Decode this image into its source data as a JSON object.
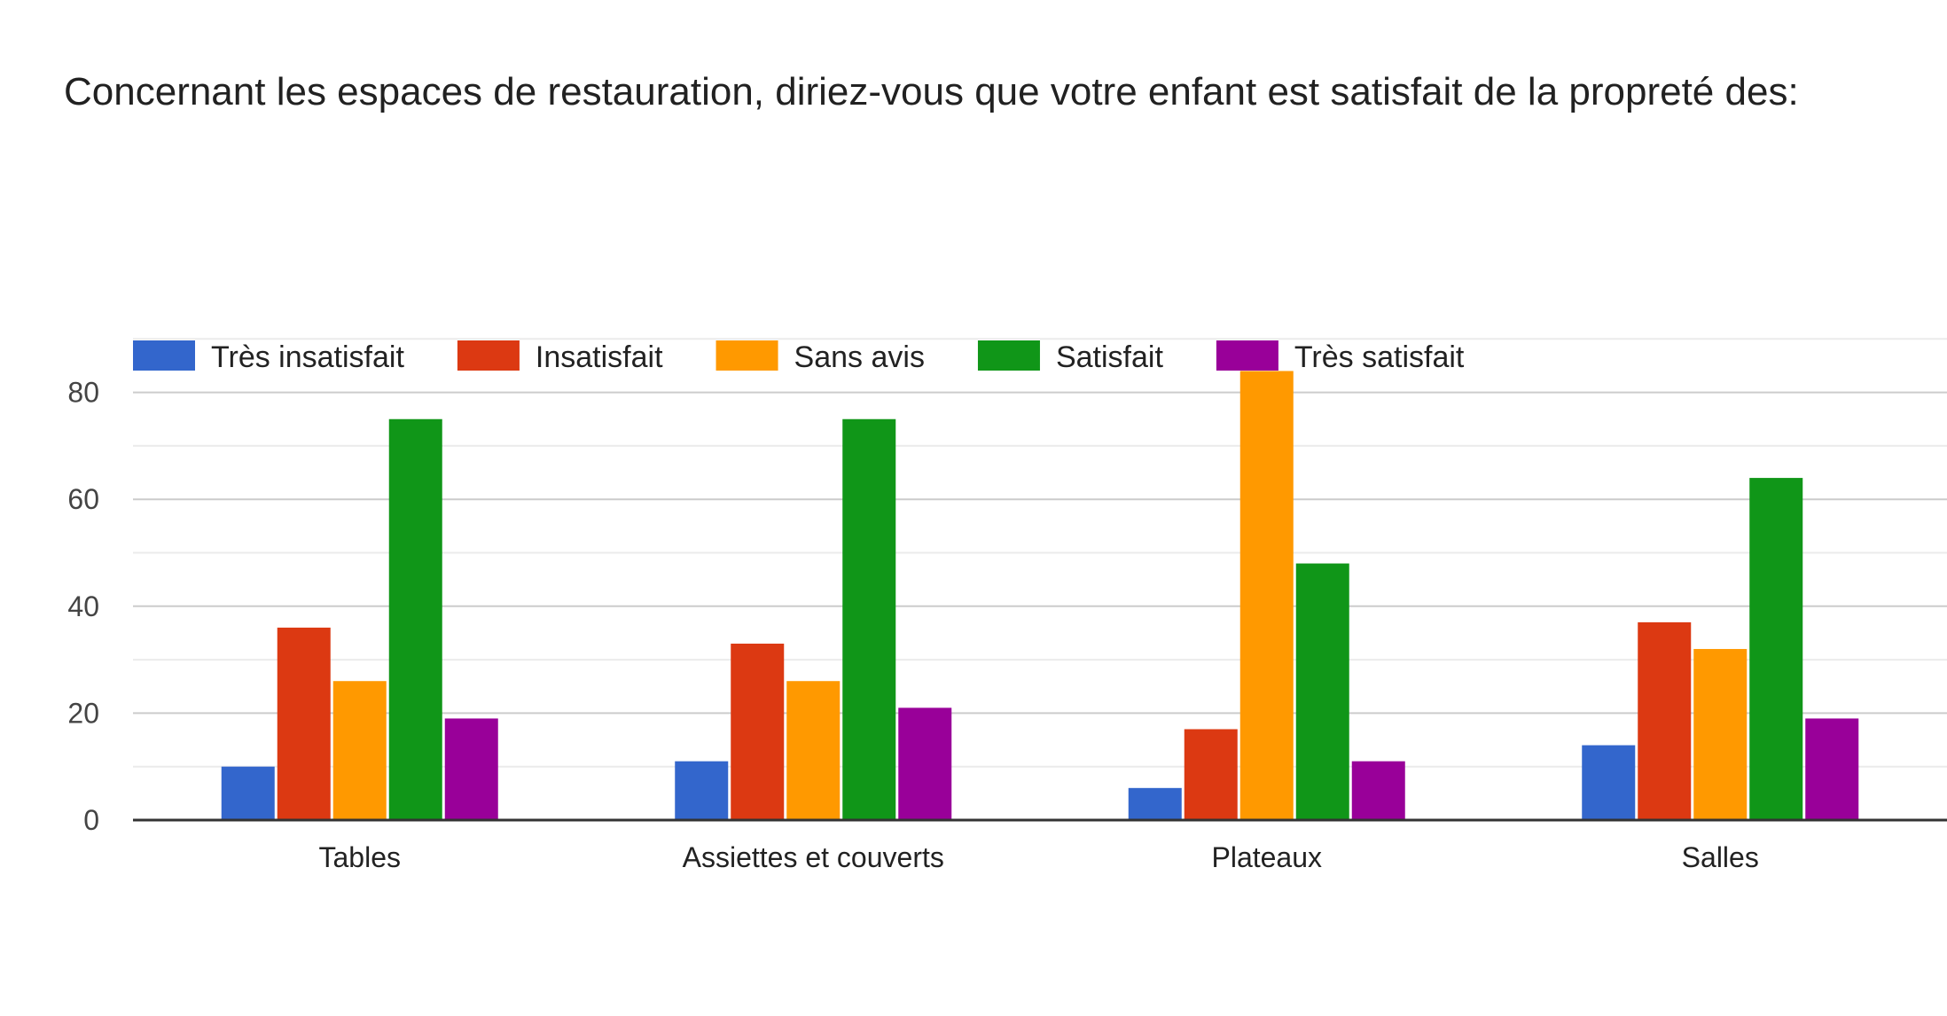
{
  "title": "Concernant les espaces de restauration, diriez-vous que votre enfant est satisfait de la propreté des:",
  "chart_data": {
    "type": "bar",
    "categories": [
      "Tables",
      "Assiettes et couverts",
      "Plateaux",
      "Salles"
    ],
    "series": [
      {
        "name": "Très insatisfait",
        "color": "#3366cc",
        "values": [
          10,
          11,
          6,
          14
        ]
      },
      {
        "name": "Insatisfait",
        "color": "#dc3912",
        "values": [
          36,
          33,
          17,
          37
        ]
      },
      {
        "name": "Sans avis",
        "color": "#ff9900",
        "values": [
          26,
          26,
          84,
          32
        ]
      },
      {
        "name": "Satisfait",
        "color": "#109618",
        "values": [
          75,
          75,
          48,
          64
        ]
      },
      {
        "name": "Très satisfait",
        "color": "#990099",
        "values": [
          19,
          21,
          11,
          19
        ]
      }
    ],
    "ylim": [
      0,
      90
    ],
    "yticks": [
      0,
      20,
      40,
      60,
      80
    ],
    "xlabel": "",
    "ylabel": "",
    "legend": "top-left",
    "grid": true
  }
}
